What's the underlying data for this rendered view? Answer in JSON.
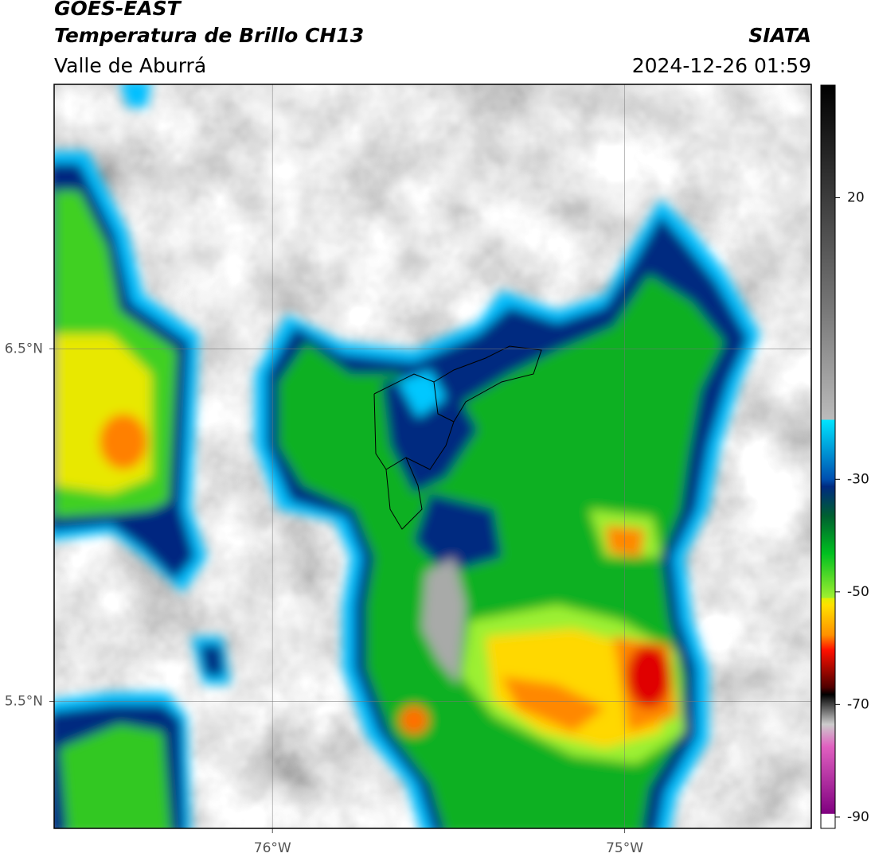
{
  "header": {
    "title": "GOES-EAST",
    "subtitle": "Temperatura de Brillo CH13",
    "region": "Valle de Aburrá",
    "source": "SIATA",
    "timestamp": "2024-12-26 01:59"
  },
  "map": {
    "xlim": [
      -76.62,
      -74.47
    ],
    "ylim": [
      5.14,
      7.25
    ],
    "xticks": [
      {
        "value": -76,
        "label": "76°W"
      },
      {
        "value": -75,
        "label": "75°W"
      }
    ],
    "yticks": [
      {
        "value": 6.5,
        "label": "6.5°N"
      },
      {
        "value": 5.5,
        "label": "5.5°N"
      }
    ]
  },
  "colorbar": {
    "lim": [
      -92,
      40
    ],
    "ticks": [
      20,
      -30,
      -50,
      -70,
      -90
    ]
  }
}
